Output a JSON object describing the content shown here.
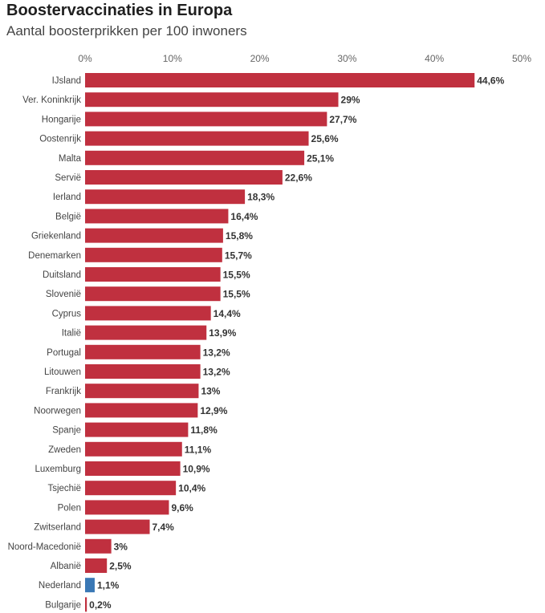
{
  "chart_data": {
    "type": "bar",
    "orientation": "horizontal",
    "title": "Boostervaccinaties in Europa",
    "subtitle": "Aantal boosterprikken per 100 inwoners",
    "xlim": [
      0,
      50
    ],
    "ticks": [
      "0%",
      "10%",
      "20%",
      "30%",
      "40%",
      "50%"
    ],
    "tick_values": [
      0,
      10,
      20,
      30,
      40,
      50
    ],
    "default_color": "#c0303f",
    "highlight_color": "#3a78b5",
    "highlight": "Nederland",
    "categories": [
      "IJsland",
      "Ver. Koninkrijk",
      "Hongarije",
      "Oostenrijk",
      "Malta",
      "Servië",
      "Ierland",
      "België",
      "Griekenland",
      "Denemarken",
      "Duitsland",
      "Slovenië",
      "Cyprus",
      "Italië",
      "Portugal",
      "Litouwen",
      "Frankrijk",
      "Noorwegen",
      "Spanje",
      "Zweden",
      "Luxemburg",
      "Tsjechië",
      "Polen",
      "Zwitserland",
      "Noord-Macedonië",
      "Albanië",
      "Nederland",
      "Bulgarije"
    ],
    "values": [
      44.6,
      29,
      27.7,
      25.6,
      25.1,
      22.6,
      18.3,
      16.4,
      15.8,
      15.7,
      15.5,
      15.5,
      14.4,
      13.9,
      13.2,
      13.2,
      13,
      12.9,
      11.8,
      11.1,
      10.9,
      10.4,
      9.6,
      7.4,
      3,
      2.5,
      1.1,
      0.2
    ],
    "value_labels": [
      "44,6%",
      "29%",
      "27,7%",
      "25,6%",
      "25,1%",
      "22,6%",
      "18,3%",
      "16,4%",
      "15,8%",
      "15,7%",
      "15,5%",
      "15,5%",
      "14,4%",
      "13,9%",
      "13,2%",
      "13,2%",
      "13%",
      "12,9%",
      "11,8%",
      "11,1%",
      "10,9%",
      "10,4%",
      "9,6%",
      "7,4%",
      "3%",
      "2,5%",
      "1,1%",
      "0,2%"
    ]
  }
}
